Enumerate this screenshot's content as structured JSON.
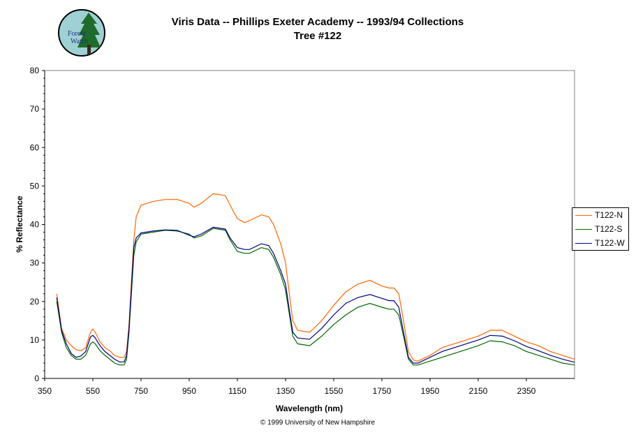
{
  "logo": {
    "text_line1": "Forest",
    "text_line2": "Watch"
  },
  "title": {
    "line1": "Viris Data -- Phillips Exeter Academy -- 1993/94 Collections",
    "line2": "Tree #122"
  },
  "footer": {
    "copyright": "© 1999 University of New Hampshire"
  },
  "colors": {
    "T122-N": "#ff6600",
    "T122-S": "#006600",
    "T122-W": "#000080"
  },
  "chart_data": {
    "type": "line",
    "xlabel": "Wavelength (nm)",
    "ylabel": "% Reflectance",
    "xlim": [
      350,
      2550
    ],
    "ylim": [
      0,
      80
    ],
    "xticks": [
      "350",
      "550",
      "750",
      "950",
      "1150",
      "1350",
      "1550",
      "1750",
      "1950",
      "2150",
      "2350"
    ],
    "yticks": [
      "0",
      "10",
      "20",
      "30",
      "40",
      "50",
      "60",
      "70",
      "80"
    ],
    "legend_position": "right",
    "grid": false,
    "series": [
      {
        "name": "T122-N",
        "x": [
          400,
          420,
          440,
          460,
          480,
          500,
          520,
          540,
          550,
          560,
          580,
          600,
          620,
          640,
          660,
          680,
          690,
          700,
          710,
          720,
          730,
          750,
          800,
          850,
          900,
          950,
          970,
          1000,
          1050,
          1100,
          1120,
          1150,
          1180,
          1200,
          1250,
          1280,
          1300,
          1330,
          1350,
          1370,
          1380,
          1400,
          1450,
          1500,
          1550,
          1600,
          1650,
          1700,
          1750,
          1780,
          1800,
          1820,
          1840,
          1860,
          1880,
          1900,
          1950,
          2000,
          2050,
          2100,
          2150,
          2200,
          2250,
          2300,
          2350,
          2400,
          2450,
          2500,
          2550
        ],
        "y": [
          22,
          13,
          10,
          8.5,
          7.5,
          7.2,
          8,
          12,
          12.8,
          12,
          9.5,
          8,
          7.2,
          6,
          5.5,
          5.5,
          7,
          14,
          25,
          36,
          42,
          45,
          46,
          46.5,
          46.5,
          45.5,
          44.5,
          45.5,
          48,
          47.5,
          45,
          41.5,
          40.5,
          41,
          42.5,
          42,
          40,
          35,
          30,
          20,
          15,
          12.5,
          12,
          15,
          19,
          22.5,
          24.5,
          25.5,
          24,
          23.5,
          23.5,
          22,
          15,
          7,
          4.8,
          4.5,
          6,
          8,
          9,
          10,
          11,
          12.5,
          12.5,
          11,
          9.5,
          8.5,
          7,
          6,
          5
        ]
      },
      {
        "name": "T122-S",
        "x": [
          400,
          420,
          440,
          460,
          480,
          500,
          520,
          540,
          550,
          560,
          580,
          600,
          620,
          640,
          660,
          680,
          690,
          700,
          710,
          720,
          730,
          750,
          800,
          850,
          900,
          950,
          970,
          1000,
          1050,
          1100,
          1120,
          1150,
          1180,
          1200,
          1250,
          1280,
          1300,
          1330,
          1350,
          1370,
          1380,
          1400,
          1450,
          1500,
          1550,
          1600,
          1650,
          1700,
          1750,
          1780,
          1800,
          1820,
          1840,
          1860,
          1880,
          1900,
          1950,
          2000,
          2050,
          2100,
          2150,
          2200,
          2250,
          2300,
          2350,
          2400,
          2450,
          2500,
          2550
        ],
        "y": [
          20,
          12,
          8,
          6,
          5,
          5,
          6,
          9,
          9.5,
          9,
          7.2,
          6,
          5,
          4,
          3.5,
          3.5,
          5,
          12,
          22,
          32,
          35.5,
          37.5,
          38,
          38.5,
          38.3,
          37.5,
          36.5,
          37,
          39,
          38.5,
          36,
          33,
          32.5,
          32.5,
          34,
          33.5,
          31.5,
          27,
          23,
          15,
          11,
          9,
          8.5,
          11,
          14,
          16.5,
          18.5,
          19.5,
          18.5,
          18,
          18,
          16.5,
          11,
          5,
          3.5,
          3.5,
          4.5,
          5.5,
          6.5,
          7.5,
          8.5,
          9.8,
          9.5,
          8.5,
          7,
          6,
          5,
          4,
          3.5
        ]
      },
      {
        "name": "T122-W",
        "x": [
          400,
          420,
          440,
          460,
          480,
          500,
          520,
          540,
          550,
          560,
          580,
          600,
          620,
          640,
          660,
          680,
          690,
          700,
          710,
          720,
          730,
          750,
          800,
          850,
          900,
          950,
          970,
          1000,
          1050,
          1100,
          1120,
          1150,
          1180,
          1200,
          1250,
          1280,
          1300,
          1330,
          1350,
          1370,
          1380,
          1400,
          1450,
          1500,
          1550,
          1600,
          1650,
          1700,
          1750,
          1780,
          1800,
          1820,
          1840,
          1860,
          1880,
          1900,
          1950,
          2000,
          2050,
          2100,
          2150,
          2200,
          2250,
          2300,
          2350,
          2400,
          2450,
          2500,
          2550
        ],
        "y": [
          21,
          12.5,
          9,
          6.5,
          5.5,
          5.8,
          7,
          10.8,
          11.2,
          10.5,
          8.5,
          7,
          6,
          5,
          4.3,
          4.3,
          6,
          13,
          23.5,
          34,
          36.5,
          37.8,
          38.3,
          38.6,
          38.5,
          37.2,
          36.8,
          37.5,
          39.3,
          38.8,
          36.5,
          34,
          33.5,
          33.5,
          35,
          34.5,
          32.5,
          28,
          24.5,
          16,
          12,
          10.5,
          10.2,
          13,
          16.5,
          19.5,
          21,
          21.8,
          20.8,
          20.2,
          20.2,
          18.5,
          12,
          5.5,
          4,
          4,
          5.5,
          7,
          8,
          9,
          10,
          11.2,
          11,
          9.8,
          8.3,
          7.2,
          6,
          5,
          4.2
        ]
      }
    ]
  }
}
